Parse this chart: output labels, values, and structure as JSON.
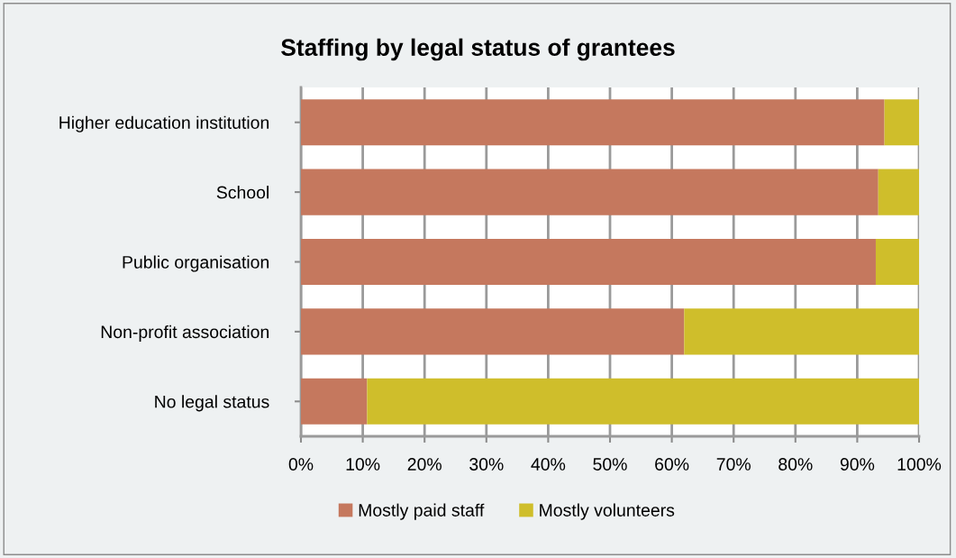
{
  "chart_data": {
    "type": "bar",
    "orientation": "horizontal",
    "stacked": true,
    "title": "Staffing by legal status of grantees",
    "categories": [
      "Higher education institution",
      "School",
      "Public organisation",
      "Non-profit association",
      "No legal status"
    ],
    "series": [
      {
        "name": "Mostly paid staff",
        "color": "#c5785e",
        "values": [
          94.4,
          93.4,
          93.0,
          62.0,
          10.7
        ]
      },
      {
        "name": "Mostly volunteers",
        "color": "#cfbe2b",
        "values": [
          5.6,
          6.6,
          7.0,
          38.0,
          89.3
        ]
      }
    ],
    "xlim": [
      0,
      100
    ],
    "xticks": [
      {
        "value": 0,
        "label": "0%"
      },
      {
        "value": 10,
        "label": "10%"
      },
      {
        "value": 20,
        "label": "20%"
      },
      {
        "value": 30,
        "label": "30%"
      },
      {
        "value": 40,
        "label": "40%"
      },
      {
        "value": 50,
        "label": "50%"
      },
      {
        "value": 60,
        "label": "60%"
      },
      {
        "value": 70,
        "label": "70%"
      },
      {
        "value": 80,
        "label": "80%"
      },
      {
        "value": 90,
        "label": "90%"
      },
      {
        "value": 100,
        "label": "100%"
      }
    ],
    "grid": "x",
    "legend": "bottom"
  }
}
